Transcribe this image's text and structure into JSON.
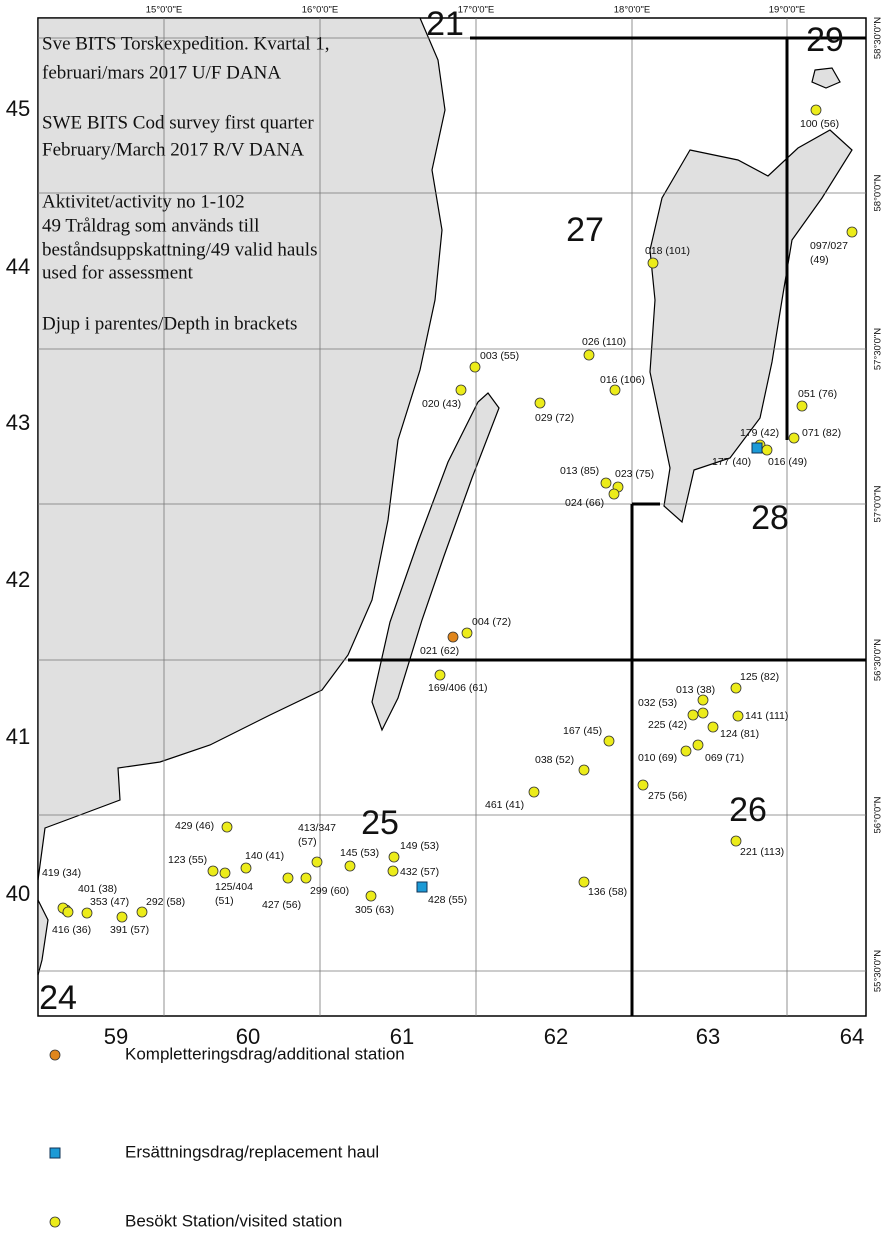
{
  "map": {
    "title_paragraphs": [
      [
        "Sve BITS Torskexpedition. Kvartal 1,",
        "februari/mars 2017 U/F DANA"
      ],
      [
        "SWE BITS Cod survey first quarter",
        "February/March 2017 R/V DANA"
      ],
      [
        "Aktivitet/activity no 1-102",
        "49 Tråldrag som används till",
        "beståndsuppskattning/49 valid hauls",
        "used for assessment"
      ],
      [
        "Djup i parentes/Depth in brackets"
      ]
    ],
    "subdivisions": [
      "21",
      "29",
      "27",
      "28",
      "25",
      "26",
      "24"
    ],
    "ices_rows": [
      "45",
      "44",
      "43",
      "42",
      "41",
      "40"
    ],
    "ices_columns": [
      "59",
      "60",
      "61",
      "62",
      "63",
      "64"
    ],
    "longitudes": [
      "15°0'0\"E",
      "16°0'0\"E",
      "17°0'0\"E",
      "18°0'0\"E",
      "19°0'0\"E"
    ],
    "latitudes": [
      "58°30'0\"N",
      "58°0'0\"N",
      "57°30'0\"N",
      "57°0'0\"N",
      "56°30'0\"N",
      "56°0'0\"N",
      "55°30'0\"N"
    ],
    "stations": [
      {
        "label": [
          "100 (56)"
        ],
        "type": "visited"
      },
      {
        "label": [
          "097/027",
          "(49)"
        ],
        "type": "visited"
      },
      {
        "label": [
          "018 (101)"
        ],
        "type": "visited"
      },
      {
        "label": [
          "003 (55)"
        ],
        "type": "visited"
      },
      {
        "label": [
          "020 (43)"
        ],
        "type": "visited"
      },
      {
        "label": [
          "026 (110)"
        ],
        "type": "visited"
      },
      {
        "label": [
          "016 (106)"
        ],
        "type": "visited"
      },
      {
        "label": [
          "029 (72)"
        ],
        "type": "visited"
      },
      {
        "label": [
          "051 (76)"
        ],
        "type": "visited"
      },
      {
        "label": [
          "179 (42)"
        ],
        "type": "visited"
      },
      {
        "label": [
          "071 (82)"
        ],
        "type": "visited"
      },
      {
        "label": [
          "016 (49)"
        ],
        "type": "visited"
      },
      {
        "label": [
          "177 (40)"
        ],
        "type": "replacement"
      },
      {
        "label": [
          "013 (85)"
        ],
        "type": "visited"
      },
      {
        "label": [
          "023 (75)"
        ],
        "type": "visited"
      },
      {
        "label": [
          "024 (66)"
        ],
        "type": "visited"
      },
      {
        "label": [
          "004 (72)"
        ],
        "type": "visited"
      },
      {
        "label": [
          "021 (62)"
        ],
        "type": "additional"
      },
      {
        "label": [
          "169/406 (61)"
        ],
        "type": "visited"
      },
      {
        "label": [
          "125 (82)"
        ],
        "type": "visited"
      },
      {
        "label": [
          "013 (38)"
        ],
        "type": "visited"
      },
      {
        "label": [
          "032 (53)"
        ],
        "type": "visited"
      },
      {
        "label": [
          "225 (42)"
        ],
        "type": "visited"
      },
      {
        "label": [
          "141 (111)"
        ],
        "type": "visited"
      },
      {
        "label": [
          "124 (81)"
        ],
        "type": "visited"
      },
      {
        "label": [
          "167 (45)"
        ],
        "type": "visited"
      },
      {
        "label": [
          "038 (52)"
        ],
        "type": "visited"
      },
      {
        "label": [
          "010 (69)"
        ],
        "type": "visited"
      },
      {
        "label": [
          "069 (71)"
        ],
        "type": "visited"
      },
      {
        "label": [
          "461 (41)"
        ],
        "type": "visited"
      },
      {
        "label": [
          "275 (56)"
        ],
        "type": "visited"
      },
      {
        "label": [
          "221 (113)"
        ],
        "type": "visited"
      },
      {
        "label": [
          "136 (58)"
        ],
        "type": "visited"
      },
      {
        "label": [
          "428 (55)"
        ],
        "type": "replacement"
      },
      {
        "label": [
          "149 (53)"
        ],
        "type": "visited"
      },
      {
        "label": [
          "432 (57)"
        ],
        "type": "visited"
      },
      {
        "label": [
          "145 (53)"
        ],
        "type": "visited"
      },
      {
        "label": [
          "305 (63)"
        ],
        "type": "visited"
      },
      {
        "label": [
          "413/347",
          "(57)"
        ],
        "type": "visited"
      },
      {
        "label": [
          "299 (60)"
        ],
        "type": "visited"
      },
      {
        "label": [
          "427 (56)"
        ],
        "type": "visited"
      },
      {
        "label": [
          "140 (41)"
        ],
        "type": "visited"
      },
      {
        "label": [
          "429 (46)"
        ],
        "type": "visited"
      },
      {
        "label": [
          "123 (55)"
        ],
        "type": "visited"
      },
      {
        "label": [
          "125/404",
          "(51)"
        ],
        "type": "visited"
      },
      {
        "label": [
          "419 (34)"
        ],
        "type": "visited"
      },
      {
        "label": [
          "401 (38)"
        ],
        "type": "visited"
      },
      {
        "label": [
          "416 (36)"
        ],
        "type": "visited"
      },
      {
        "label": [
          "353 (47)"
        ],
        "type": "visited"
      },
      {
        "label": [
          "391 (57)"
        ],
        "type": "visited"
      },
      {
        "label": [
          "292 (58)"
        ],
        "type": "visited"
      }
    ],
    "colors": {
      "visited": "#ecec1a",
      "additional": "#e0861c",
      "replacement": "#1c9ad6"
    },
    "legend": [
      {
        "type": "additional",
        "label": "Kompletteringsdrag/additional station"
      },
      {
        "type": "replacement",
        "label": "Ersättningsdrag/replacement haul"
      },
      {
        "type": "visited",
        "label": "Besökt Station/visited station"
      }
    ]
  }
}
